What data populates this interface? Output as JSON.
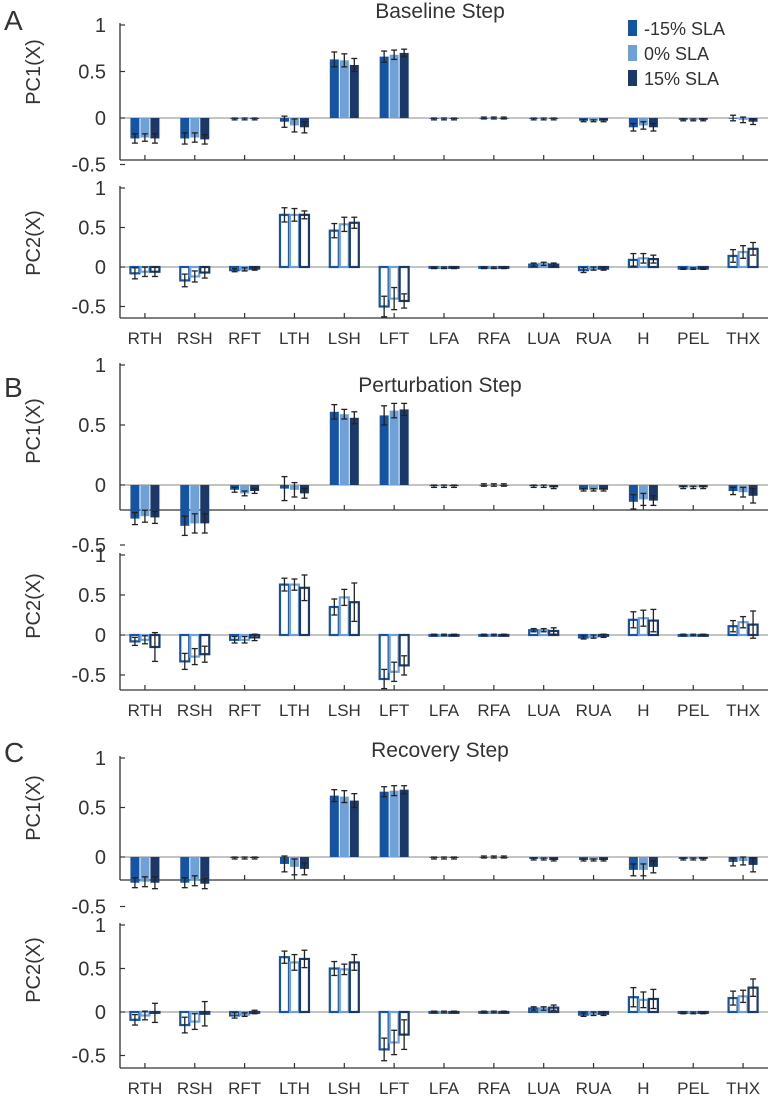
{
  "figure": {
    "legend": [
      {
        "name": "-15% SLA",
        "color": "#1553a3"
      },
      {
        "name": "0% SLA",
        "color": "#6fa0d6"
      },
      {
        "name": "15% SLA",
        "color": "#1c3869"
      }
    ],
    "colors": {
      "axis": "#333333",
      "zero_line": "#888888",
      "error_bar": "#222222"
    }
  },
  "chart_data": [
    {
      "type": "bar",
      "panel_letter": "A",
      "title": "Baseline Step",
      "ylabel": "PC1(X)",
      "ylim": [
        -0.5,
        1
      ],
      "yticks": [
        "1",
        "0.5",
        "0",
        "-0.5"
      ],
      "yticks_values": [
        1,
        0.5,
        0,
        -0.5
      ],
      "style": "filled",
      "categories": [
        "RTH",
        "RSH",
        "RFT",
        "LTH",
        "LSH",
        "LFT",
        "LFA",
        "RFA",
        "LUA",
        "RUA",
        "H",
        "PEL",
        "THX"
      ],
      "show_xtick_labels": false,
      "series": [
        {
          "name": "-15% SLA",
          "values": [
            -0.22,
            -0.22,
            -0.01,
            -0.04,
            0.63,
            0.66,
            -0.01,
            0,
            -0.01,
            -0.03,
            -0.1,
            -0.02,
            0.0
          ],
          "errors": [
            0.05,
            0.06,
            0.01,
            0.06,
            0.08,
            0.06,
            0.01,
            0.01,
            0.01,
            0.01,
            0.04,
            0.01,
            0.03
          ]
        },
        {
          "name": "0% SLA",
          "values": [
            -0.21,
            -0.21,
            -0.01,
            -0.08,
            0.62,
            0.68,
            -0.01,
            0,
            -0.01,
            -0.03,
            -0.08,
            -0.02,
            -0.02
          ],
          "errors": [
            0.04,
            0.05,
            0.01,
            0.07,
            0.07,
            0.05,
            0.01,
            0.01,
            0.01,
            0.01,
            0.04,
            0.01,
            0.03
          ]
        },
        {
          "name": "15% SLA",
          "values": [
            -0.22,
            -0.23,
            -0.01,
            -0.1,
            0.57,
            0.7,
            -0.01,
            0,
            -0.01,
            -0.03,
            -0.1,
            -0.02,
            -0.04
          ],
          "errors": [
            0.05,
            0.05,
            0.01,
            0.06,
            0.07,
            0.04,
            0.01,
            0.01,
            0.01,
            0.01,
            0.04,
            0.01,
            0.03
          ]
        }
      ]
    },
    {
      "type": "bar",
      "panel_letter": "",
      "title": "",
      "ylabel": "PC2(X)",
      "ylim": [
        -0.75,
        1
      ],
      "yticks": [
        "1",
        "0.5",
        "0",
        "-0.5"
      ],
      "yticks_values": [
        1,
        0.5,
        0,
        -0.5
      ],
      "style": "outline",
      "categories": [
        "RTH",
        "RSH",
        "RFT",
        "LTH",
        "LSH",
        "LFT",
        "LFA",
        "RFA",
        "LUA",
        "RUA",
        "H",
        "PEL",
        "THX"
      ],
      "show_xtick_labels": true,
      "series": [
        {
          "name": "-15% SLA",
          "values": [
            -0.08,
            -0.17,
            -0.04,
            0.66,
            0.46,
            -0.5,
            -0.01,
            -0.01,
            0.03,
            -0.04,
            0.09,
            -0.02,
            0.14
          ],
          "errors": [
            0.07,
            0.08,
            0.02,
            0.09,
            0.09,
            0.13,
            0.01,
            0.01,
            0.02,
            0.03,
            0.08,
            0.01,
            0.08
          ]
        },
        {
          "name": "0% SLA",
          "values": [
            -0.06,
            -0.12,
            -0.03,
            0.66,
            0.54,
            -0.4,
            -0.01,
            -0.01,
            0.04,
            -0.02,
            0.11,
            -0.02,
            0.19
          ],
          "errors": [
            0.06,
            0.07,
            0.02,
            0.08,
            0.09,
            0.14,
            0.01,
            0.01,
            0.02,
            0.02,
            0.06,
            0.01,
            0.08
          ]
        },
        {
          "name": "15% SLA",
          "values": [
            -0.06,
            -0.07,
            -0.02,
            0.66,
            0.56,
            -0.43,
            -0.01,
            -0.01,
            0.03,
            -0.02,
            0.1,
            -0.02,
            0.23
          ],
          "errors": [
            0.06,
            0.07,
            0.02,
            0.05,
            0.07,
            0.09,
            0.01,
            0.01,
            0.02,
            0.02,
            0.05,
            0.01,
            0.08
          ]
        }
      ]
    },
    {
      "type": "bar",
      "panel_letter": "B",
      "title": "Perturbation Step",
      "ylabel": "PC1(X)",
      "ylim": [
        -0.5,
        1
      ],
      "yticks": [
        "1",
        "0.5",
        "0",
        "-0.5"
      ],
      "yticks_values": [
        1,
        0.5,
        0,
        -0.5
      ],
      "style": "filled",
      "categories": [
        "RTH",
        "RSH",
        "RFT",
        "LTH",
        "LSH",
        "LFT",
        "LFA",
        "RFA",
        "LUA",
        "RUA",
        "H",
        "PEL",
        "THX"
      ],
      "show_xtick_labels": false,
      "series": [
        {
          "name": "-15% SLA",
          "values": [
            -0.28,
            -0.34,
            -0.04,
            -0.03,
            0.61,
            0.58,
            -0.01,
            0,
            -0.01,
            -0.04,
            -0.14,
            -0.02,
            -0.05
          ],
          "errors": [
            0.05,
            0.08,
            0.02,
            0.1,
            0.06,
            0.08,
            0.01,
            0.01,
            0.01,
            0.01,
            0.06,
            0.01,
            0.03
          ]
        },
        {
          "name": "0% SLA",
          "values": [
            -0.26,
            -0.32,
            -0.07,
            -0.04,
            0.59,
            0.62,
            -0.01,
            0,
            -0.01,
            -0.04,
            -0.12,
            -0.02,
            -0.06
          ],
          "errors": [
            0.05,
            0.08,
            0.02,
            0.06,
            0.04,
            0.06,
            0.01,
            0.01,
            0.01,
            0.01,
            0.05,
            0.01,
            0.04
          ]
        },
        {
          "name": "15% SLA",
          "values": [
            -0.27,
            -0.32,
            -0.05,
            -0.07,
            0.56,
            0.63,
            -0.01,
            0,
            -0.02,
            -0.04,
            -0.13,
            -0.02,
            -0.09
          ],
          "errors": [
            0.05,
            0.08,
            0.02,
            0.04,
            0.05,
            0.05,
            0.01,
            0.01,
            0.01,
            0.01,
            0.04,
            0.01,
            0.06
          ]
        }
      ]
    },
    {
      "type": "bar",
      "panel_letter": "",
      "title": "",
      "ylabel": "PC2(X)",
      "ylim": [
        -0.75,
        1
      ],
      "yticks": [
        "1",
        "0.5",
        "0",
        "-0.5"
      ],
      "yticks_values": [
        1,
        0.5,
        0,
        -0.5
      ],
      "style": "outline",
      "categories": [
        "RTH",
        "RSH",
        "RFT",
        "LTH",
        "LSH",
        "LFT",
        "LFA",
        "RFA",
        "LUA",
        "RUA",
        "H",
        "PEL",
        "THX"
      ],
      "show_xtick_labels": true,
      "series": [
        {
          "name": "-15% SLA",
          "values": [
            -0.08,
            -0.33,
            -0.06,
            0.63,
            0.35,
            -0.55,
            0,
            0,
            0.06,
            -0.03,
            0.19,
            0.0,
            0.11
          ],
          "errors": [
            0.05,
            0.1,
            0.04,
            0.08,
            0.1,
            0.12,
            0.01,
            0.01,
            0.02,
            0.02,
            0.1,
            0.01,
            0.07
          ]
        },
        {
          "name": "0% SLA",
          "values": [
            -0.06,
            -0.27,
            -0.06,
            0.63,
            0.47,
            -0.46,
            0,
            0,
            0.06,
            -0.02,
            0.21,
            0.0,
            0.16
          ],
          "errors": [
            0.05,
            0.1,
            0.04,
            0.07,
            0.1,
            0.12,
            0.01,
            0.01,
            0.02,
            0.02,
            0.1,
            0.01,
            0.07
          ]
        },
        {
          "name": "15% SLA",
          "values": [
            -0.15,
            -0.24,
            -0.03,
            0.59,
            0.41,
            -0.38,
            0,
            0,
            0.05,
            -0.01,
            0.18,
            0.0,
            0.13
          ],
          "errors": [
            0.18,
            0.1,
            0.04,
            0.16,
            0.24,
            0.12,
            0.01,
            0.01,
            0.04,
            0.02,
            0.14,
            0.01,
            0.17
          ]
        }
      ]
    },
    {
      "type": "bar",
      "panel_letter": "C",
      "title": "Recovery Step",
      "ylabel": "PC1(X)",
      "ylim": [
        -0.5,
        1
      ],
      "yticks": [
        "1",
        "0.5",
        "0",
        "-0.5"
      ],
      "yticks_values": [
        1,
        0.5,
        0,
        -0.5
      ],
      "style": "filled",
      "categories": [
        "RTH",
        "RSH",
        "RFT",
        "LTH",
        "LSH",
        "LFT",
        "LFA",
        "RFA",
        "LUA",
        "RUA",
        "H",
        "PEL",
        "THX"
      ],
      "show_xtick_labels": false,
      "series": [
        {
          "name": "-15% SLA",
          "values": [
            -0.26,
            -0.26,
            -0.01,
            -0.07,
            0.62,
            0.66,
            -0.01,
            0,
            -0.02,
            -0.03,
            -0.13,
            -0.02,
            -0.05
          ],
          "errors": [
            0.05,
            0.05,
            0.01,
            0.08,
            0.06,
            0.05,
            0.01,
            0.01,
            0.01,
            0.01,
            0.06,
            0.01,
            0.04
          ]
        },
        {
          "name": "0% SLA",
          "values": [
            -0.25,
            -0.24,
            -0.01,
            -0.1,
            0.61,
            0.67,
            -0.01,
            0,
            -0.02,
            -0.03,
            -0.13,
            -0.02,
            -0.04
          ],
          "errors": [
            0.05,
            0.05,
            0.01,
            0.08,
            0.06,
            0.05,
            0.01,
            0.01,
            0.01,
            0.01,
            0.06,
            0.01,
            0.04
          ]
        },
        {
          "name": "15% SLA",
          "values": [
            -0.26,
            -0.27,
            -0.01,
            -0.12,
            0.57,
            0.68,
            -0.01,
            0,
            -0.03,
            -0.03,
            -0.1,
            -0.02,
            -0.08
          ],
          "errors": [
            0.06,
            0.05,
            0.01,
            0.06,
            0.07,
            0.04,
            0.01,
            0.01,
            0.01,
            0.01,
            0.06,
            0.01,
            0.07
          ]
        }
      ]
    },
    {
      "type": "bar",
      "panel_letter": "",
      "title": "",
      "ylabel": "PC2(X)",
      "ylim": [
        -0.75,
        1
      ],
      "yticks": [
        "1",
        "0.5",
        "0",
        "-0.5"
      ],
      "yticks_values": [
        1,
        0.5,
        0,
        -0.5
      ],
      "style": "outline",
      "categories": [
        "RTH",
        "RSH",
        "RFT",
        "LTH",
        "LSH",
        "LFT",
        "LFA",
        "RFA",
        "LUA",
        "RUA",
        "H",
        "PEL",
        "THX"
      ],
      "show_xtick_labels": true,
      "series": [
        {
          "name": "-15% SLA",
          "values": [
            -0.09,
            -0.15,
            -0.04,
            0.63,
            0.5,
            -0.43,
            0,
            0,
            0.04,
            -0.03,
            0.17,
            -0.01,
            0.16
          ],
          "errors": [
            0.06,
            0.09,
            0.03,
            0.07,
            0.08,
            0.13,
            0.01,
            0.01,
            0.02,
            0.02,
            0.11,
            0.01,
            0.08
          ]
        },
        {
          "name": "0% SLA",
          "values": [
            -0.04,
            -0.11,
            -0.03,
            0.57,
            0.49,
            -0.35,
            0,
            0,
            0.04,
            -0.02,
            0.14,
            -0.01,
            0.18
          ],
          "errors": [
            0.05,
            0.09,
            0.02,
            0.09,
            0.06,
            0.14,
            0.01,
            0.01,
            0.02,
            0.02,
            0.09,
            0.01,
            0.07
          ]
        },
        {
          "name": "15% SLA",
          "values": [
            -0.01,
            -0.02,
            0.0,
            0.61,
            0.57,
            -0.26,
            0,
            0,
            0.05,
            -0.02,
            0.15,
            -0.01,
            0.28
          ],
          "errors": [
            0.11,
            0.14,
            0.02,
            0.1,
            0.09,
            0.17,
            0.01,
            0.01,
            0.03,
            0.02,
            0.11,
            0.01,
            0.1
          ]
        }
      ]
    }
  ]
}
